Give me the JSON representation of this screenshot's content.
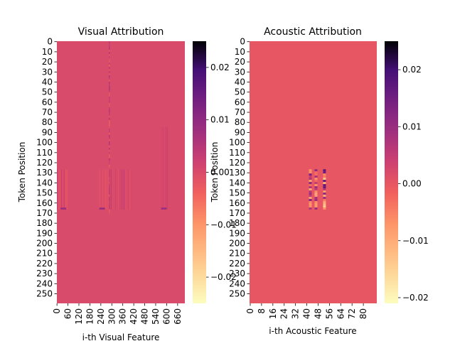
{
  "chart_data": [
    {
      "type": "heatmap",
      "title": "Visual Attribution",
      "xlabel": "i-th Visual Feature",
      "ylabel": "Token Position",
      "x_range": [
        0,
        699
      ],
      "y_range": [
        0,
        259
      ],
      "x_ticks": [
        "0",
        "60",
        "120",
        "180",
        "240",
        "300",
        "360",
        "420",
        "480",
        "540",
        "600",
        "660"
      ],
      "y_ticks": [
        "0",
        "10",
        "20",
        "30",
        "40",
        "50",
        "60",
        "70",
        "80",
        "90",
        "100",
        "110",
        "120",
        "130",
        "140",
        "150",
        "160",
        "170",
        "180",
        "190",
        "200",
        "210",
        "220",
        "230",
        "240",
        "250"
      ],
      "colormap": "magma_r",
      "base_value": 0.0,
      "colorbar": {
        "range": [
          -0.025,
          0.025
        ],
        "ticks": [
          "0.02",
          "0.01",
          "0.00",
          "−0.01",
          "−0.02"
        ],
        "tick_values": [
          0.02,
          0.01,
          0.0,
          -0.01,
          -0.02
        ]
      },
      "features": [
        {
          "kind": "stripe",
          "x": [
            284,
            289
          ],
          "y": [
            0,
            170
          ],
          "values": [
            0.006,
            -0.004
          ]
        },
        {
          "kind": "band",
          "x": [
            0,
            60
          ],
          "y": [
            127,
            166
          ],
          "values": [
            0.004,
            -0.003
          ]
        },
        {
          "kind": "band",
          "x": [
            232,
            412
          ],
          "y": [
            127,
            166
          ],
          "values": [
            0.004,
            -0.003
          ]
        },
        {
          "kind": "band",
          "x": [
            570,
            610
          ],
          "y": [
            85,
            166
          ],
          "values": [
            0.004,
            -0.003
          ]
        },
        {
          "kind": "line",
          "x": [
            20,
            50
          ],
          "y": [
            165,
            166
          ],
          "values": [
            0.008
          ]
        },
        {
          "kind": "line",
          "x": [
            232,
            262
          ],
          "y": [
            165,
            166
          ],
          "values": [
            0.008
          ]
        },
        {
          "kind": "line",
          "x": [
            570,
            600
          ],
          "y": [
            165,
            166
          ],
          "values": [
            0.008
          ]
        }
      ]
    },
    {
      "type": "heatmap",
      "title": "Acoustic Attribution",
      "xlabel": "i-th Acoustic Feature",
      "ylabel": "Token Position",
      "x_range": [
        0,
        89
      ],
      "y_range": [
        0,
        259
      ],
      "x_ticks": [
        "0",
        "8",
        "16",
        "24",
        "32",
        "40",
        "48",
        "56",
        "64",
        "72",
        "80"
      ],
      "y_ticks": [
        "0",
        "10",
        "20",
        "30",
        "40",
        "50",
        "60",
        "70",
        "80",
        "90",
        "100",
        "110",
        "120",
        "130",
        "140",
        "150",
        "160",
        "170",
        "180",
        "190",
        "200",
        "210",
        "220",
        "230",
        "240",
        "250"
      ],
      "colormap": "magma_r",
      "base_value": 0.0,
      "colorbar": {
        "range": [
          -0.021,
          0.025
        ],
        "ticks": [
          "0.02",
          "0.01",
          "0.00",
          "−0.01",
          "−0.02"
        ],
        "tick_values": [
          0.02,
          0.01,
          0.0,
          -0.01,
          -0.02
        ]
      },
      "features": [
        {
          "kind": "column",
          "x": [
            42,
            43
          ],
          "y": [
            127,
            166
          ],
          "values": [
            0.015,
            -0.01
          ]
        },
        {
          "kind": "column",
          "x": [
            46,
            47
          ],
          "y": [
            127,
            166
          ],
          "values": [
            0.015,
            -0.01
          ]
        },
        {
          "kind": "column",
          "x": [
            52,
            53
          ],
          "y": [
            127,
            166
          ],
          "values": [
            0.02,
            -0.015
          ]
        }
      ]
    }
  ]
}
